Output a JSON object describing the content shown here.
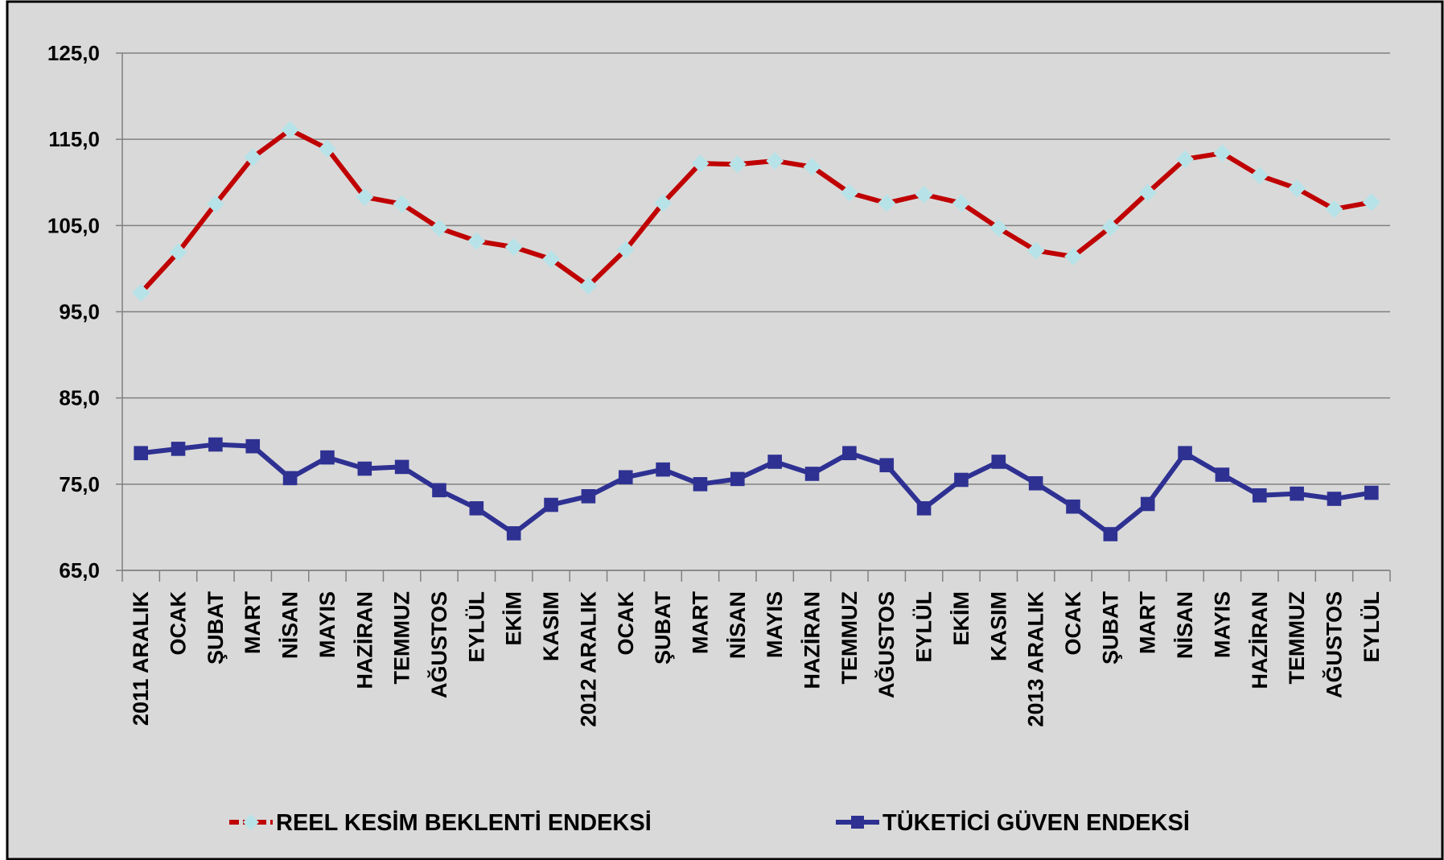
{
  "chart_data": {
    "type": "line",
    "categories": [
      "2011 ARALIK",
      "OCAK",
      "ŞUBAT",
      "MART",
      "NİSAN",
      "MAYIS",
      "HAZİRAN",
      "TEMMUZ",
      "AĞUSTOS",
      "EYLÜL",
      "EKİM",
      "KASIM",
      "2012 ARALIK",
      "OCAK",
      "ŞUBAT",
      "MART",
      "NİSAN",
      "MAYIS",
      "HAZİRAN",
      "TEMMUZ",
      "AĞUSTOS",
      "EYLÜL",
      "EKİM",
      "KASIM",
      "2013 ARALIK",
      "OCAK",
      "ŞUBAT",
      "MART",
      "NİSAN",
      "MAYIS",
      "HAZİRAN",
      "TEMMUZ",
      "AĞUSTOS",
      "EYLÜL"
    ],
    "series": [
      {
        "name": "REEL KESİM BEKLENTİ ENDEKSİ",
        "color": "#c00000",
        "marker_color": "#b7e3e8",
        "marker": "diamond",
        "values": [
          97.2,
          101.9,
          107.5,
          112.9,
          116.1,
          113.9,
          108.3,
          107.5,
          104.7,
          103.2,
          102.5,
          101.1,
          98.0,
          102.2,
          107.6,
          112.2,
          112.1,
          112.5,
          111.8,
          108.8,
          107.6,
          108.6,
          107.6,
          104.7,
          102.1,
          101.4,
          104.8,
          108.8,
          112.7,
          113.4,
          110.8,
          109.3,
          106.9,
          107.7
        ]
      },
      {
        "name": "TÜKETİCİ GÜVEN ENDEKSİ",
        "color": "#2e3192",
        "marker_color": "#2e3192",
        "marker": "square",
        "values": [
          78.6,
          79.1,
          79.6,
          79.4,
          75.7,
          78.1,
          76.8,
          77.0,
          74.3,
          72.2,
          69.3,
          72.6,
          73.6,
          75.8,
          76.7,
          75.0,
          75.6,
          77.6,
          76.2,
          78.6,
          77.2,
          72.2,
          75.5,
          77.6,
          75.1,
          72.4,
          69.2,
          72.7,
          78.6,
          76.1,
          73.7,
          73.9,
          73.3,
          74.0
        ]
      }
    ],
    "ylim": [
      65,
      125
    ],
    "yticks": [
      {
        "value": 65,
        "label": "65,0"
      },
      {
        "value": 75,
        "label": "75,0"
      },
      {
        "value": 85,
        "label": "85,0"
      },
      {
        "value": 95,
        "label": "95,0"
      },
      {
        "value": 105,
        "label": "105,0"
      },
      {
        "value": 115,
        "label": "115,0"
      },
      {
        "value": 125,
        "label": "125,0"
      }
    ],
    "grid": true,
    "legend": "bottom",
    "background": "#d9d9d9"
  }
}
